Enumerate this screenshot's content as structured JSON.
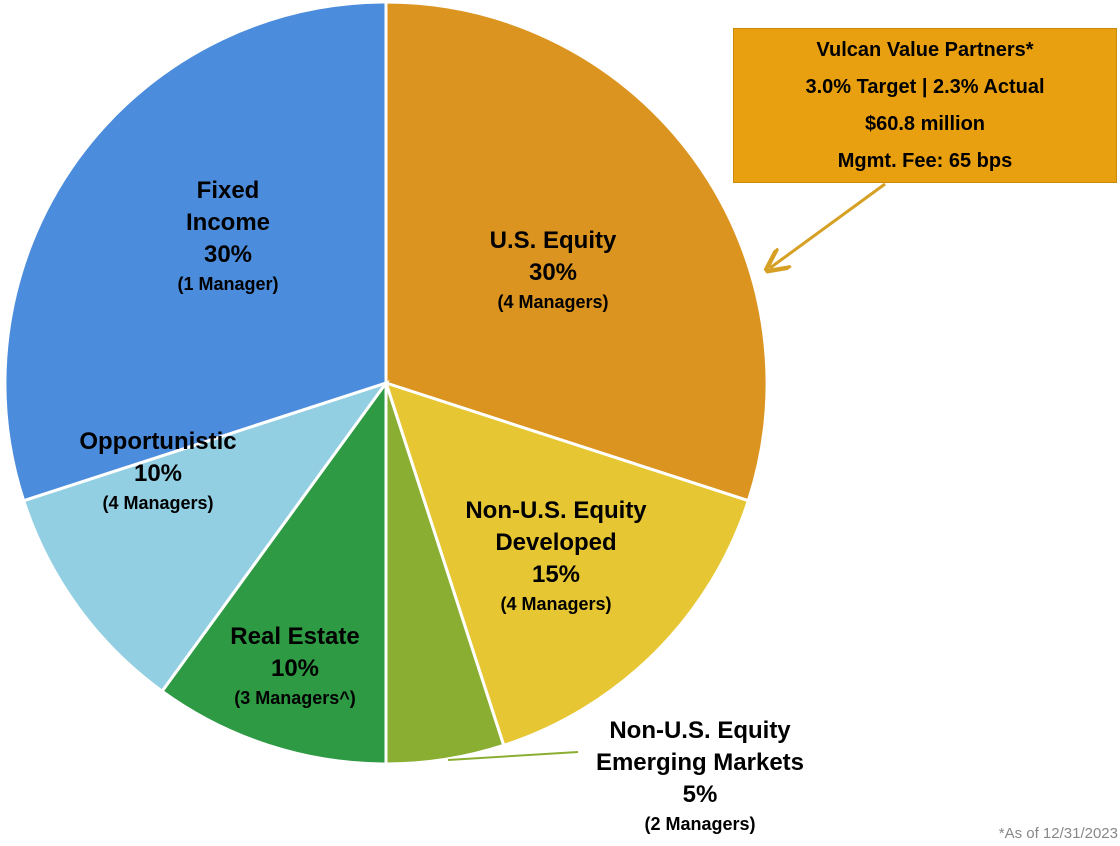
{
  "chart_data": {
    "type": "pie",
    "categories": [
      "U.S. Equity",
      "Non-U.S. Equity Developed",
      "Non-U.S. Equity Emerging Markets",
      "Real Estate",
      "Opportunistic",
      "Fixed Income"
    ],
    "values": [
      30,
      15,
      5,
      10,
      10,
      30
    ],
    "value_labels": [
      "30%",
      "15%",
      "5%",
      "10%",
      "10%",
      "30%"
    ],
    "manager_labels": [
      "(4 Managers)",
      "(4 Managers)",
      "(2 Managers)",
      "(3 Managers^)",
      "(4 Managers)",
      "(1 Manager)"
    ],
    "colors": [
      "#dc9420",
      "#e6c632",
      "#8aae32",
      "#2e9a44",
      "#92cfe2",
      "#4c8cdc"
    ],
    "callout": [
      "Vulcan Value Partners*",
      "3.0% Target  | 2.3% Actual",
      "$60.8 million",
      "Mgmt. Fee: 65 bps"
    ],
    "footnote": "*As of 12/31/2023"
  }
}
